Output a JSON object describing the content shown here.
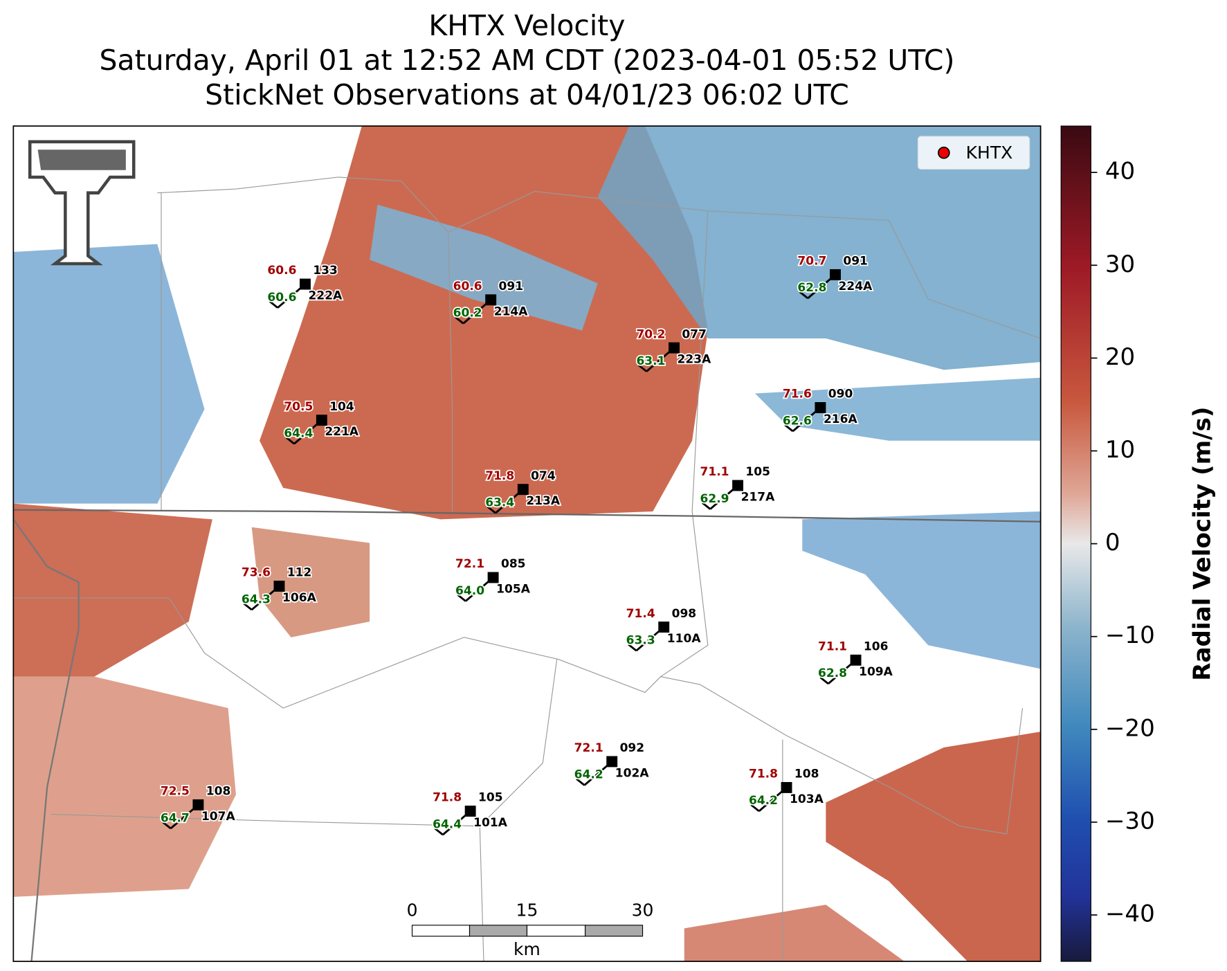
{
  "title": [
    "KHTX Velocity",
    "Saturday, April 01 at 12:52 AM CDT (2023-04-01 05:52 UTC)",
    "StickNet Observations at 04/01/23 06:02 UTC"
  ],
  "legend": "KHTX",
  "colorbar": {
    "label": "Radial Velocity (m/s)",
    "lim": [
      -45,
      45
    ],
    "ticks": [
      {
        "value": -40,
        "label": "−40"
      },
      {
        "value": -30,
        "label": "−30"
      },
      {
        "value": -20,
        "label": "−20"
      },
      {
        "value": -10,
        "label": "−10"
      },
      0,
      10,
      20,
      30,
      40
    ]
  },
  "scale_bar": {
    "labels": [
      "0",
      "15",
      "30"
    ],
    "unit": "km"
  },
  "stations": [
    {
      "temp": "60.6",
      "dew": "60.6",
      "code": "133",
      "id": "222A"
    },
    {
      "temp": "60.6",
      "dew": "60.2",
      "code": "091",
      "id": "214A"
    },
    {
      "temp": "70.7",
      "dew": "62.8",
      "code": "091",
      "id": "224A"
    },
    {
      "temp": "70.2",
      "dew": "63.1",
      "code": "077",
      "id": "223A"
    },
    {
      "temp": "70.5",
      "dew": "64.4",
      "code": "104",
      "id": "221A"
    },
    {
      "temp": "71.6",
      "dew": "62.6",
      "code": "090",
      "id": "216A"
    },
    {
      "temp": "71.8",
      "dew": "63.4",
      "code": "074",
      "id": "213A"
    },
    {
      "temp": "71.1",
      "dew": "62.9",
      "code": "105",
      "id": "217A"
    },
    {
      "temp": "72.1",
      "dew": "64.0",
      "code": "085",
      "id": "105A"
    },
    {
      "temp": "73.6",
      "dew": "64.3",
      "code": "112",
      "id": "106A"
    },
    {
      "temp": "71.4",
      "dew": "63.3",
      "code": "098",
      "id": "110A"
    },
    {
      "temp": "71.1",
      "dew": "62.8",
      "code": "106",
      "id": "109A"
    },
    {
      "temp": "72.1",
      "dew": "64.2",
      "code": "092",
      "id": "102A"
    },
    {
      "temp": "71.8",
      "dew": "64.2",
      "code": "108",
      "id": "103A"
    },
    {
      "temp": "72.5",
      "dew": "64.7",
      "code": "108",
      "id": "107A"
    },
    {
      "temp": "71.8",
      "dew": "64.4",
      "code": "105",
      "id": "101A"
    }
  ]
}
